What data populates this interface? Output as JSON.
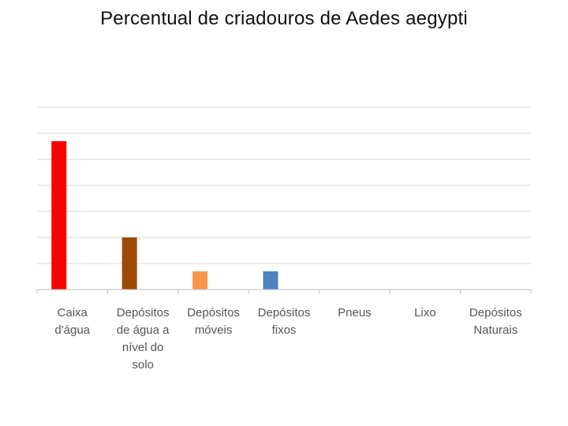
{
  "chart_data": {
    "type": "bar",
    "title": "Percentual de criadouros de Aedes aegypti",
    "xlabel": "",
    "ylabel": "",
    "categories": [
      [
        "Caixa",
        "d'água"
      ],
      [
        "Depósitos",
        "de água a",
        "nível do",
        "solo"
      ],
      [
        "Depósitos",
        "móveis"
      ],
      [
        "Depósitos",
        "fixos"
      ],
      [
        "Pneus"
      ],
      [
        "Lixo"
      ],
      [
        "Depósitos",
        "Naturais"
      ]
    ],
    "values": [
      57,
      20,
      7,
      7,
      0,
      0,
      0
    ],
    "colors": [
      "#ff0000",
      "#9b4a06",
      "#f7964a",
      "#4f81bd",
      "#4f81bd",
      "#4f81bd",
      "#4f81bd"
    ],
    "ylim": [
      0,
      70
    ],
    "ytick_step": 10,
    "grid": true,
    "legend": "none"
  }
}
